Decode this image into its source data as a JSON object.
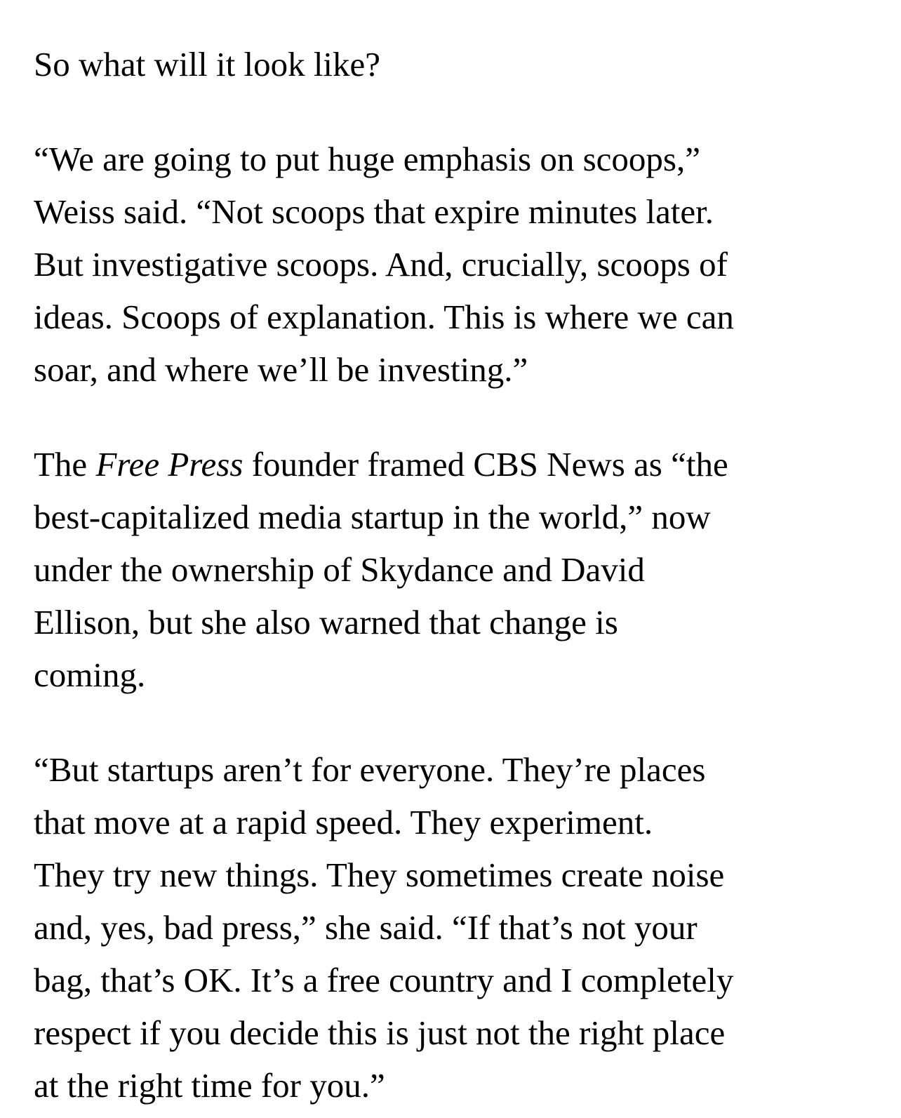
{
  "page": {
    "background_color": "#ffffff",
    "text_color": "#000000"
  },
  "article": {
    "paragraphs": [
      {
        "lines": [
          "So what will it look like?"
        ]
      },
      {
        "lines": [
          "“We are going to put huge emphasis on scoops,”",
          "Weiss said. “Not scoops that expire minutes later.",
          "But investigative scoops. And, crucially, scoops of",
          "ideas. Scoops of explanation. This is where we can",
          "soar, and where we’ll be investing.”"
        ]
      },
      {
        "line1_segments": {
          "pre": "The ",
          "italic": "Free Press",
          "post": " founder framed CBS News as “the"
        },
        "lines_rest": [
          "best-capitalized media startup in the world,” now",
          "under the ownership of Skydance and David",
          "Ellison, but she also warned that change is",
          "coming."
        ]
      },
      {
        "lines": [
          "“But startups aren’t for everyone. They’re places",
          "that move at a rapid speed. They experiment.",
          "They try new things. They sometimes create noise",
          "and, yes, bad press,” she said. “If that’s not your",
          "bag, that’s OK. It’s a free country and I completely",
          "respect if you decide this is just not the right place",
          "at the right time for you.”"
        ]
      }
    ]
  }
}
